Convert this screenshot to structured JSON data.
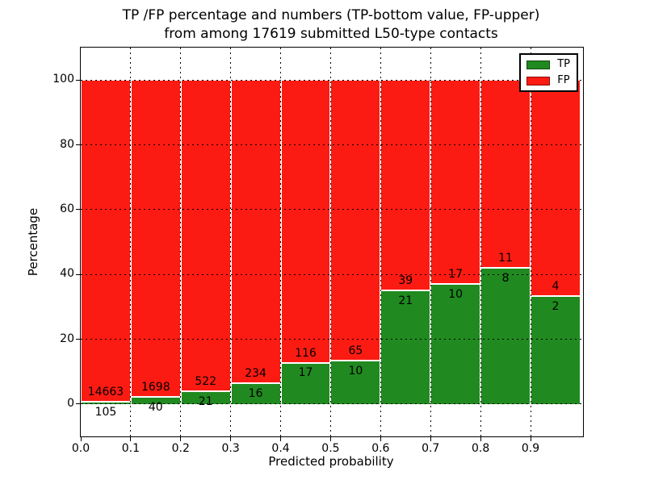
{
  "header": {
    "title_line1": "TP /FP percentage and numbers (TP-bottom value, FP-upper)",
    "title_line2": "from among 17619 submitted L50-type contacts"
  },
  "chart_data": {
    "type": "bar",
    "stacked": true,
    "title": "TP /FP percentage and numbers (TP-bottom value, FP-upper) from among 17619 submitted L50-type contacts",
    "total_submitted": 17619,
    "bin_starts": [
      0.0,
      0.1,
      0.2,
      0.3,
      0.4,
      0.5,
      0.6,
      0.7,
      0.8,
      0.9
    ],
    "bin_width": 0.1,
    "series": [
      {
        "name": "TP",
        "color": "#208a20",
        "counts": [
          105,
          40,
          21,
          16,
          17,
          10,
          21,
          10,
          8,
          2
        ]
      },
      {
        "name": "FP",
        "color": "#fc1b12",
        "counts": [
          14663,
          1698,
          522,
          234,
          116,
          65,
          39,
          17,
          11,
          4
        ]
      }
    ],
    "tp_percent_per_bin": [
      0.71,
      2.3,
      3.87,
      6.4,
      12.78,
      13.33,
      35.0,
      37.04,
      42.11,
      33.33
    ],
    "bars_show": "stacked percentage TP/(TP+FP) bottom and FP/(TP+FP) top, each bar totals 100%; numeric labels show raw counts (TP below boundary, FP above)",
    "xlabel": "Predicted probability",
    "ylabel": "Percentage",
    "xticks": [
      "0.0",
      "0.1",
      "0.2",
      "0.3",
      "0.4",
      "0.5",
      "0.6",
      "0.7",
      "0.8",
      "0.9"
    ],
    "yticks": [
      "0",
      "20",
      "40",
      "60",
      "80",
      "100"
    ],
    "xlim": [
      0,
      1.005
    ],
    "ylim": [
      -10,
      110
    ],
    "grid": "dotted black, horizontal at y ticks and vertical at x ticks",
    "legend_position": "upper right",
    "colors": {
      "tp_green": "#208a20",
      "fp_red": "#fc1b12",
      "grid": "#000000",
      "bar_edge": "#ffffff"
    }
  }
}
